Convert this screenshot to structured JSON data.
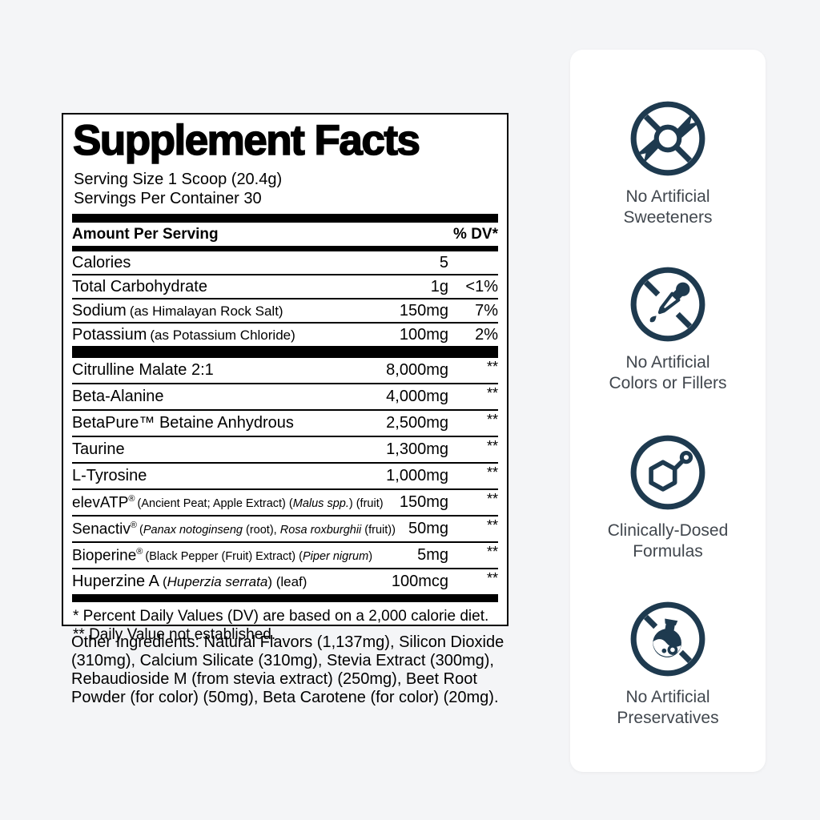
{
  "label": {
    "title": "Supplement Facts",
    "serving_size": "Serving Size 1 Scoop (20.4g)",
    "servings_per_container": "Servings Per Container 30",
    "columns": {
      "amount_header": "Amount Per Serving",
      "dv_header": "% DV*"
    },
    "rows": [
      {
        "name": "Calories",
        "sub": [],
        "amount": "5",
        "dv": ""
      },
      {
        "name": "Total Carbohydrate",
        "sub": [],
        "amount": "1g",
        "dv": "<1%"
      },
      {
        "name": "Sodium",
        "sub": [
          {
            "t": "(as Himalayan Rock Salt)",
            "i": false
          }
        ],
        "amount": "150mg",
        "dv": "7%"
      },
      {
        "name": "Potassium",
        "sub": [
          {
            "t": "(as Potassium Chloride)",
            "i": false
          }
        ],
        "amount": "100mg",
        "dv": "2%"
      },
      {
        "name": "Citrulline Malate 2:1",
        "sub": [],
        "amount": "8,000mg",
        "dv": "**"
      },
      {
        "name": "Beta-Alanine",
        "sub": [],
        "amount": "4,000mg",
        "dv": "**"
      },
      {
        "name": "BetaPure™ Betaine Anhydrous",
        "sub": [],
        "amount": "2,500mg",
        "dv": "**"
      },
      {
        "name": "Taurine",
        "sub": [],
        "amount": "1,300mg",
        "dv": "**"
      },
      {
        "name": "L-Tyrosine",
        "sub": [],
        "amount": "1,000mg",
        "dv": "**"
      },
      {
        "name": "elevATP",
        "sup": "®",
        "sub": [
          {
            "t": "(Ancient Peat; Apple Extract) (",
            "i": false
          },
          {
            "t": "Malus spp.",
            "i": true
          },
          {
            "t": ") (fruit)",
            "i": false
          }
        ],
        "amount": "150mg",
        "dv": "**"
      },
      {
        "name": "Senactiv",
        "sup": "®",
        "sub": [
          {
            "t": "(",
            "i": false
          },
          {
            "t": "Panax notoginseng",
            "i": true
          },
          {
            "t": " (root), ",
            "i": false
          },
          {
            "t": "Rosa roxburghii",
            "i": true
          },
          {
            "t": " (fruit))",
            "i": false
          }
        ],
        "amount": "50mg",
        "dv": "**"
      },
      {
        "name": "Bioperine",
        "sup": "®",
        "sub": [
          {
            "t": "(Black Pepper (Fruit) Extract) (",
            "i": false
          },
          {
            "t": "Piper nigrum",
            "i": true
          },
          {
            "t": ")",
            "i": false
          }
        ],
        "amount": "5mg",
        "dv": "**"
      },
      {
        "name": "Huperzine A",
        "sub": [
          {
            "t": "(",
            "i": false
          },
          {
            "t": "Huperzia serrata",
            "i": true
          },
          {
            "t": ") (leaf)",
            "i": false
          }
        ],
        "amount": "100mcg",
        "dv": "**"
      }
    ],
    "footnotes": {
      "dv_note": "* Percent Daily Values (DV) are based on a 2,000 calorie diet.",
      "not_established_note": "** Daily Value not established."
    }
  },
  "other_ingredients": "Other Ingredients: Natural Flavors (1,137mg), Silicon Dioxide (310mg), Calcium Silicate (310mg), Stevia Extract (300mg), Rebaudioside M (from stevia extract) (250mg), Beet Root Powder (for color) (50mg), Beta Carotene (for color) (20mg).",
  "badges": [
    {
      "icon": "no-artificial-sweeteners-icon",
      "label_lines": [
        "No Artificial",
        "Sweeteners"
      ]
    },
    {
      "icon": "no-artificial-colors-icon",
      "label_lines": [
        "No Artificial",
        "Colors or Fillers"
      ]
    },
    {
      "icon": "clinically-dosed-icon",
      "label_lines": [
        "Clinically-Dosed",
        "Formulas"
      ]
    },
    {
      "icon": "no-artificial-preservatives-icon",
      "label_lines": [
        "No Artificial",
        "Preservatives"
      ]
    }
  ],
  "colors": {
    "icon": "#1e3a4f",
    "background": "#f4f5f7",
    "card": "#ffffff",
    "text": "#000000",
    "caption": "#41474e"
  }
}
